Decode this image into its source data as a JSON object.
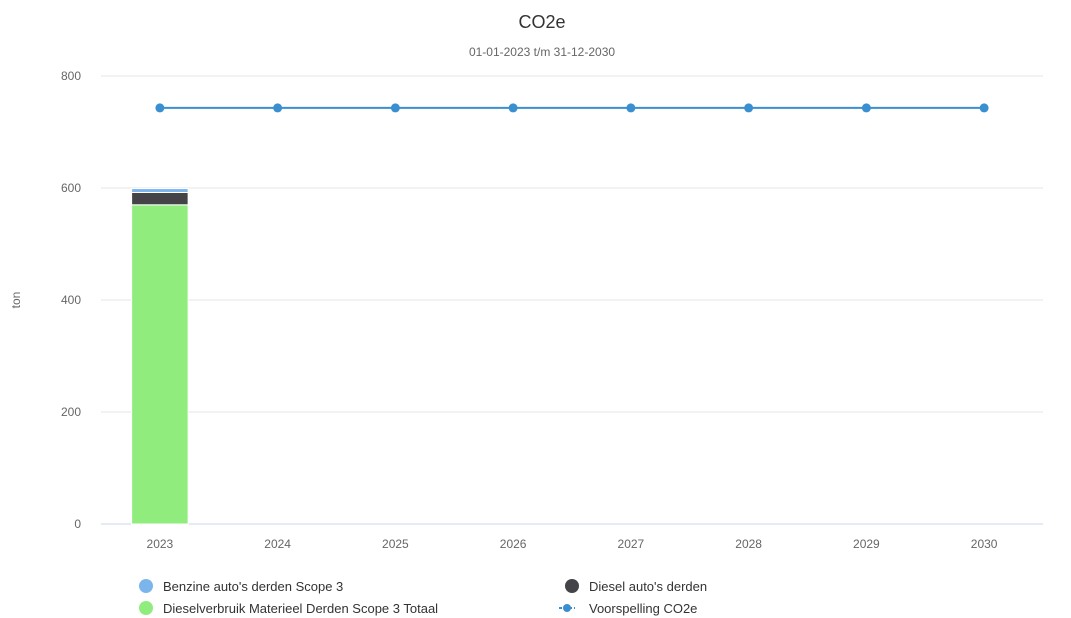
{
  "chart_data": {
    "type": "bar",
    "title": "CO2e",
    "subtitle": "01-01-2023 t/m 31-12-2030",
    "xlabel": "",
    "ylabel": "ton",
    "ylim": [
      0,
      800
    ],
    "yticks": [
      0,
      200,
      400,
      600,
      800
    ],
    "categories": [
      "2023",
      "2024",
      "2025",
      "2026",
      "2027",
      "2028",
      "2029",
      "2030"
    ],
    "stacked": true,
    "grid": true,
    "legend_position": "bottom",
    "series": [
      {
        "name": "Dieselverbruik Materieel Derden Scope 3 Totaal",
        "type": "bar",
        "color": "#90ed7d",
        "values": [
          570,
          0,
          0,
          0,
          0,
          0,
          0,
          0
        ]
      },
      {
        "name": "Diesel auto's derden",
        "type": "bar",
        "color": "#434348",
        "values": [
          22,
          0,
          0,
          0,
          0,
          0,
          0,
          0
        ]
      },
      {
        "name": "Benzine auto's derden Scope 3",
        "type": "bar",
        "color": "#7cb5ec",
        "values": [
          7,
          0,
          0,
          0,
          0,
          0,
          0,
          0
        ]
      },
      {
        "name": "Voorspelling CO2e",
        "type": "line",
        "color": "#3a8fd1",
        "values": [
          743,
          743,
          743,
          743,
          743,
          743,
          743,
          743
        ]
      }
    ],
    "legend": [
      {
        "label": "Benzine auto's derden Scope 3",
        "symbol": "circle",
        "color": "#7cb5ec"
      },
      {
        "label": "Diesel auto's derden",
        "symbol": "circle",
        "color": "#434348"
      },
      {
        "label": "Dieselverbruik Materieel Derden Scope 3 Totaal",
        "symbol": "circle",
        "color": "#90ed7d"
      },
      {
        "label": "Voorspelling CO2e",
        "symbol": "line-marker",
        "color": "#3a8fd1"
      }
    ]
  }
}
